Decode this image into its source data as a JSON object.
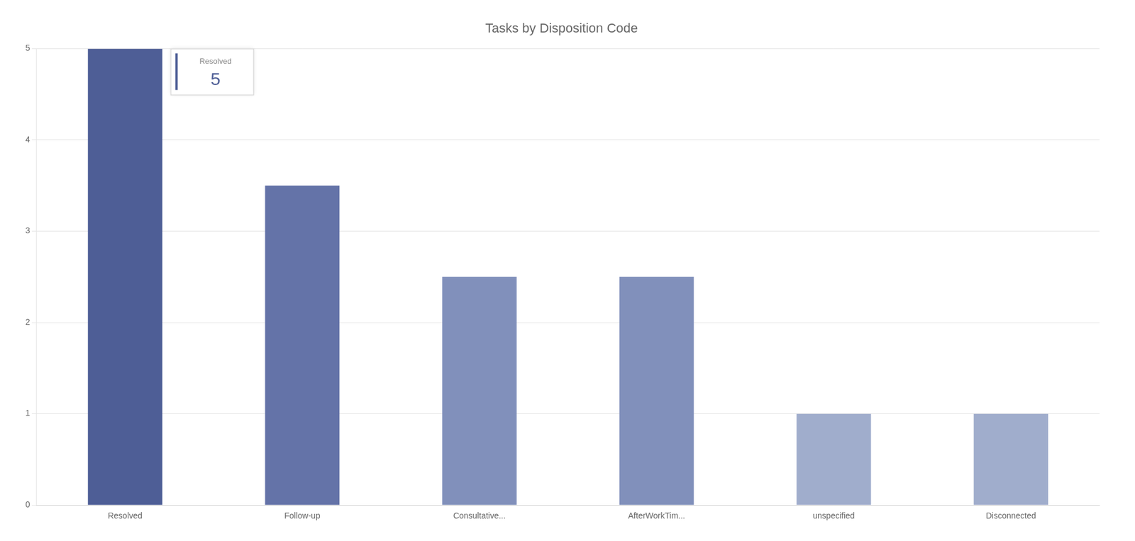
{
  "chart_data": {
    "type": "bar",
    "title": "Tasks by Disposition Code",
    "categories": [
      "Resolved",
      "Follow-up",
      "Consultative...",
      "AfterWorkTim...",
      "unspecified",
      "Disconnected"
    ],
    "values": [
      5,
      3.5,
      2.5,
      2.5,
      1,
      1
    ],
    "colors": [
      "#4e5e96",
      "#6473a8",
      "#8190bb",
      "#8190bb",
      "#a0adcc",
      "#a0adcc"
    ],
    "ylim": [
      0,
      5
    ],
    "yticks": [
      0,
      1,
      2,
      3,
      4,
      5
    ],
    "grid": true,
    "annotations": [
      {
        "label": "Resolved",
        "value": 5
      }
    ]
  }
}
